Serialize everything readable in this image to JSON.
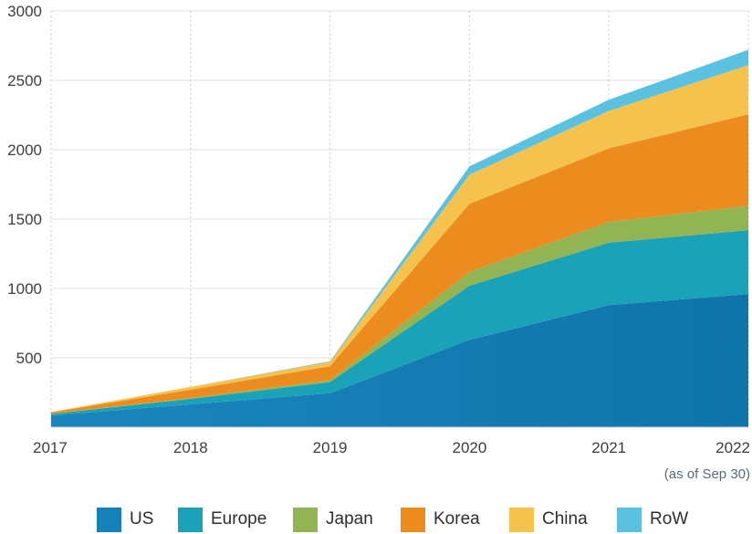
{
  "chart_data": {
    "type": "area",
    "stacked": true,
    "categories": [
      "2017",
      "2018",
      "2019",
      "2020",
      "2021",
      "2022"
    ],
    "x_note": "(as of Sep 30)",
    "ylim": [
      0,
      3000
    ],
    "yticks": [
      500,
      1000,
      1500,
      2000,
      2500,
      3000
    ],
    "grid": true,
    "legend_position": "bottom",
    "series": [
      {
        "name": "US",
        "color": "#1681b8",
        "values": [
          85,
          165,
          245,
          630,
          880,
          960
        ]
      },
      {
        "name": "Europe",
        "color": "#1aa3b8",
        "values": [
          10,
          40,
          80,
          390,
          450,
          460
        ]
      },
      {
        "name": "Japan",
        "color": "#93b452",
        "values": [
          2,
          5,
          15,
          100,
          150,
          175
        ]
      },
      {
        "name": "Korea",
        "color": "#ec8c1e",
        "values": [
          10,
          60,
          100,
          490,
          530,
          660
        ]
      },
      {
        "name": "China",
        "color": "#f5c24d",
        "values": [
          3,
          20,
          30,
          210,
          270,
          355
        ]
      },
      {
        "name": "RoW",
        "color": "#5bc1e1",
        "values": [
          0,
          0,
          5,
          60,
          80,
          110
        ]
      }
    ]
  }
}
